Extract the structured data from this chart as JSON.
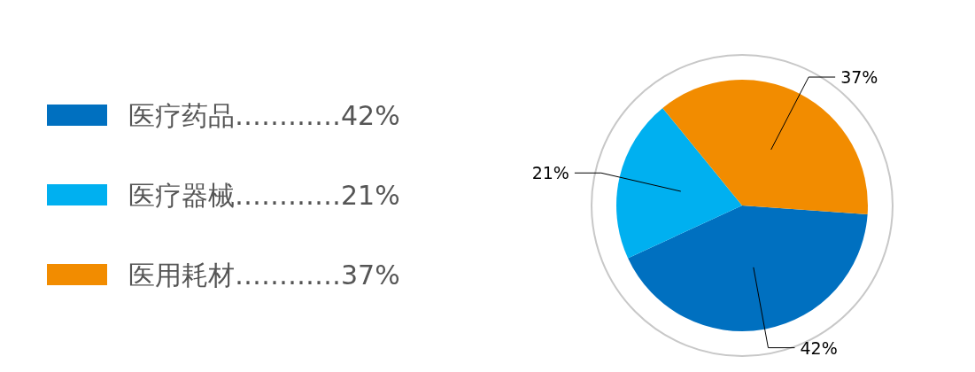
{
  "chart_data": {
    "type": "pie",
    "categories": [
      "医疗药品…………42%",
      "医疗器械…………21%",
      "医用耗材…………37%"
    ],
    "values": [
      42,
      21,
      37
    ],
    "colors": [
      "#0070c0",
      "#00b0f0",
      "#f28c00"
    ],
    "value_labels": [
      "42%",
      "21%",
      "37%"
    ],
    "legend": "left"
  }
}
